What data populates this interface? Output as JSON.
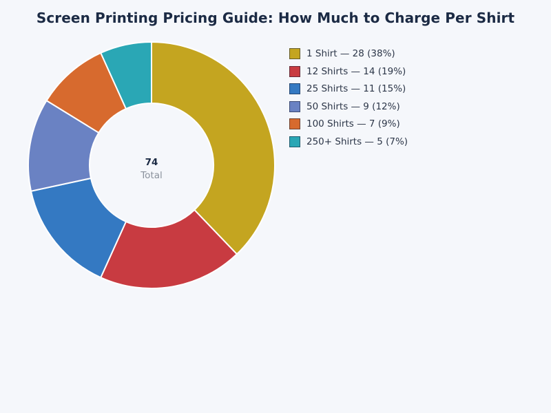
{
  "chart_data": {
    "type": "pie",
    "title": "Screen Printing Pricing Guide: How Much to Charge Per Shirt",
    "categories": [
      "1 Shirt",
      "12 Shirts",
      "25 Shirts",
      "50 Shirts",
      "100 Shirts",
      "250+ Shirts"
    ],
    "values": [
      28,
      14,
      11,
      9,
      7,
      5
    ],
    "colors": [
      "#c4a520",
      "#c83b41",
      "#3479c2",
      "#6a82c3",
      "#d76a2e",
      "#2aa7b5"
    ],
    "legend_labels": [
      "1 Shirt — 28 (38%)",
      "12 Shirts — 14 (19%)",
      "25 Shirts — 11 (15%)",
      "50 Shirts — 9 (12%)",
      "100 Shirts — 7 (9%)",
      "250+ Shirts — 5 (7%)"
    ],
    "center": {
      "value": "74",
      "label": "Total"
    },
    "legend_position": "top-right",
    "donut": true
  }
}
